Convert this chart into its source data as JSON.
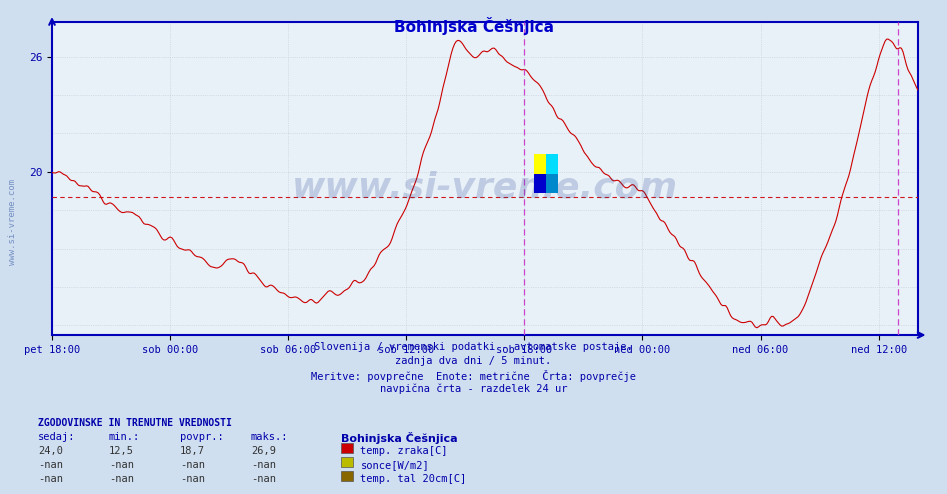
{
  "title": "Bohinjska Češnjica",
  "title_color": "#0000cc",
  "bg_color": "#d0dff0",
  "plot_bg_color": "#e8f0f8",
  "border_color": "#0000bb",
  "line_color": "#cc0000",
  "avg_line_color": "#cc0000",
  "avg_value": 18.7,
  "ymin": 11.5,
  "ymax": 27.8,
  "grid_color": "#c0ccd8",
  "text_color": "#0000aa",
  "xtick_labels": [
    "pet 18:00",
    "sob 00:00",
    "sob 06:00",
    "sob 12:00",
    "sob 18:00",
    "ned 00:00",
    "ned 06:00",
    "ned 12:00"
  ],
  "footer_lines": [
    "Slovenija / vremenski podatki - avtomatske postaje.",
    "zadnja dva dni / 5 minut.",
    "Meritve: povprečne  Enote: metrične  Črta: povprečje",
    "navpična črta - razdelek 24 ur"
  ],
  "legend_title": "Bohinjska Češnjica",
  "legend_items": [
    {
      "color": "#cc0000",
      "label": "temp. zraka[C]"
    },
    {
      "color": "#bbbb00",
      "label": "sonce[W/m2]"
    },
    {
      "color": "#886600",
      "label": "temp. tal 20cm[C]"
    }
  ],
  "table_header": [
    "sedaj:",
    "min.:",
    "povpr.:",
    "maks.:"
  ],
  "table_row1": [
    "24,0",
    "12,5",
    "18,7",
    "26,9"
  ],
  "table_row2": [
    "-nan",
    "-nan",
    "-nan",
    "-nan"
  ],
  "table_row3": [
    "-nan",
    "-nan",
    "-nan",
    "-nan"
  ],
  "history_label": "ZGODOVINSKE IN TRENUTNE VREDNOSTI",
  "watermark": "www.si-vreme.com",
  "vline_color": "#cc44cc"
}
